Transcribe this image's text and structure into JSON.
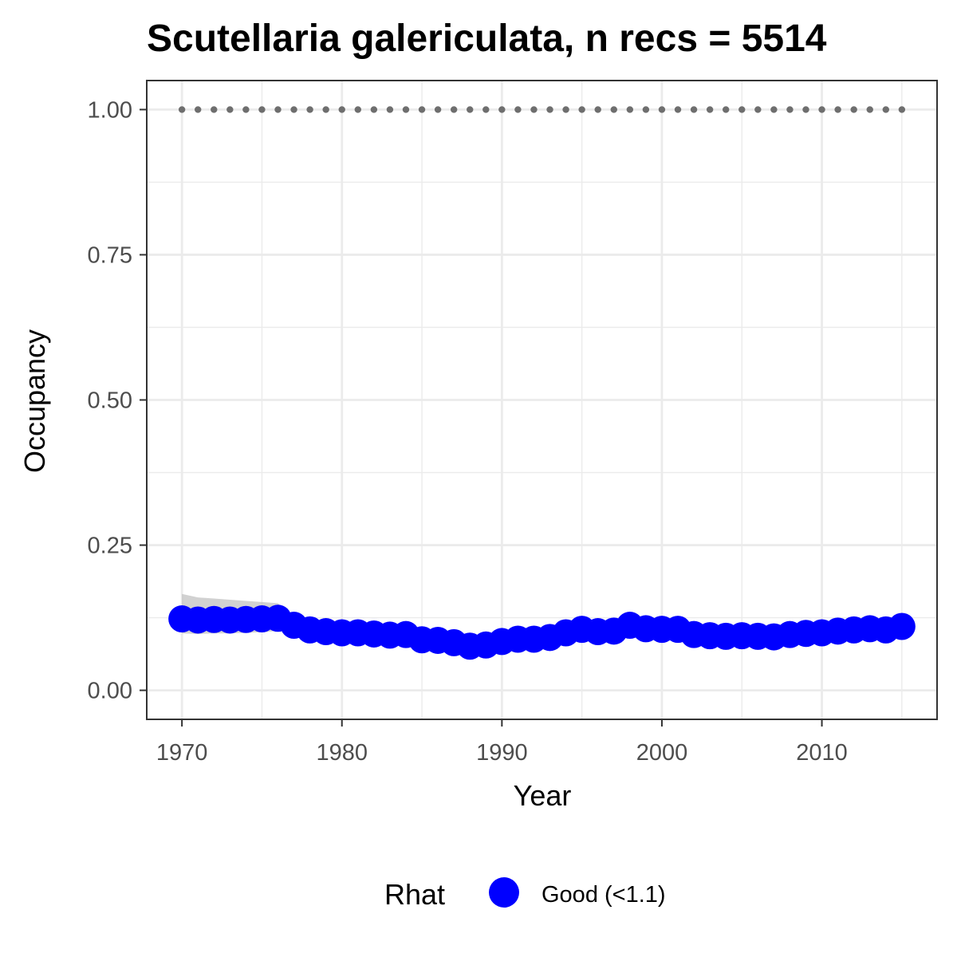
{
  "chart_data": {
    "type": "line",
    "title": "Scutellaria galericulata, n recs = 5514",
    "xlabel": "Year",
    "ylabel": "Occupancy",
    "xlim": [
      1967.8,
      2017.2
    ],
    "ylim": [
      -0.05,
      1.05
    ],
    "x_ticks": [
      1970,
      1980,
      1990,
      2000,
      2010
    ],
    "x_tick_labels": [
      "1970",
      "1980",
      "1990",
      "2000",
      "2010"
    ],
    "y_ticks": [
      0,
      0.25,
      0.5,
      0.75,
      1
    ],
    "y_tick_labels": [
      "0.00",
      "0.25",
      "0.50",
      "0.75",
      "1.00"
    ],
    "grid": true,
    "legend_position": "bottom",
    "legend": {
      "title": "Rhat",
      "entries": [
        {
          "label": "Good (<1.1)",
          "color": "#0000ff"
        }
      ]
    },
    "colors": {
      "points": "#0000ff",
      "reference_dots": "#6e6e6e",
      "ribbon": "#bebebe",
      "grid": "#ebebeb",
      "border": "#333333"
    },
    "x": [
      1970,
      1971,
      1972,
      1973,
      1974,
      1975,
      1976,
      1977,
      1978,
      1979,
      1980,
      1981,
      1982,
      1983,
      1984,
      1985,
      1986,
      1987,
      1988,
      1989,
      1990,
      1991,
      1992,
      1993,
      1994,
      1995,
      1996,
      1997,
      1998,
      1999,
      2000,
      2001,
      2002,
      2003,
      2004,
      2005,
      2006,
      2007,
      2008,
      2009,
      2010,
      2011,
      2012,
      2013,
      2014,
      2015
    ],
    "series": [
      {
        "values": [
          0.123,
          0.121,
          0.122,
          0.121,
          0.122,
          0.123,
          0.124,
          0.112,
          0.104,
          0.101,
          0.099,
          0.099,
          0.097,
          0.095,
          0.096,
          0.087,
          0.086,
          0.082,
          0.076,
          0.078,
          0.084,
          0.088,
          0.088,
          0.091,
          0.099,
          0.105,
          0.101,
          0.102,
          0.112,
          0.106,
          0.105,
          0.105,
          0.096,
          0.094,
          0.093,
          0.094,
          0.093,
          0.092,
          0.096,
          0.098,
          0.099,
          0.102,
          0.104,
          0.106,
          0.104,
          0.11
        ],
        "lower": [
          0.098,
          0.097,
          0.098,
          0.098,
          0.099,
          0.1,
          0.102,
          0.1,
          0.095,
          0.093,
          0.092,
          0.092,
          0.09,
          0.088,
          0.089,
          0.081,
          0.08,
          0.076,
          0.07,
          0.072,
          0.078,
          0.082,
          0.082,
          0.085,
          0.092,
          0.098,
          0.094,
          0.095,
          0.104,
          0.099,
          0.098,
          0.098,
          0.089,
          0.087,
          0.086,
          0.087,
          0.086,
          0.085,
          0.089,
          0.091,
          0.092,
          0.095,
          0.097,
          0.098,
          0.096,
          0.101
        ],
        "upper": [
          0.166,
          0.16,
          0.158,
          0.156,
          0.154,
          0.152,
          0.15,
          0.125,
          0.113,
          0.109,
          0.106,
          0.106,
          0.104,
          0.102,
          0.103,
          0.094,
          0.093,
          0.089,
          0.083,
          0.085,
          0.091,
          0.095,
          0.095,
          0.098,
          0.106,
          0.112,
          0.108,
          0.109,
          0.12,
          0.113,
          0.112,
          0.112,
          0.103,
          0.101,
          0.1,
          0.101,
          0.1,
          0.099,
          0.103,
          0.105,
          0.106,
          0.109,
          0.111,
          0.114,
          0.113,
          0.12
        ]
      }
    ],
    "reference_line": {
      "y": 1.0
    }
  }
}
